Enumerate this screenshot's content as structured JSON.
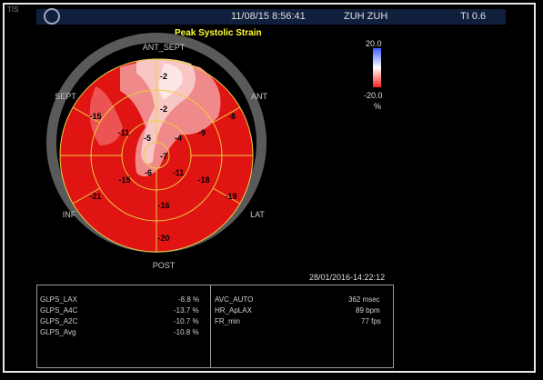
{
  "header": {
    "corner_text": "TIS",
    "date_time": "11/08/15 8:56:41",
    "patient": "ZUH ZUH",
    "ti": "TI 0.6"
  },
  "plot": {
    "title": "Peak Systolic Strain",
    "wall_labels": [
      "ANT_SEPT",
      "ANT",
      "LAT",
      "POST",
      "INF",
      "SEPT"
    ],
    "segments": {
      "basal": [
        "-2",
        "-8",
        "-19",
        "-20",
        "-21",
        "-15"
      ],
      "mid": [
        "-2",
        "-9",
        "-18",
        "-16",
        "-15",
        "-11"
      ],
      "apical": [
        "-4",
        "-11",
        "-6",
        "-5"
      ],
      "apex": "-7"
    }
  },
  "color_scale": {
    "max_label": "20.0",
    "min_label": "-20.0",
    "unit": "%",
    "colors": {
      "positive": "#4060ff",
      "zero": "#ffffff",
      "negative": "#ff2020"
    }
  },
  "timestamp": "28/01/2016-14:22:12",
  "measurements_left": [
    {
      "label": "GLPS_LAX",
      "value": "-8.8 %"
    },
    {
      "label": "GLPS_A4C",
      "value": "-13.7 %"
    },
    {
      "label": "GLPS_A2C",
      "value": "-10.7 %"
    },
    {
      "label": "GLPS_Avg",
      "value": "-10.8 %"
    }
  ],
  "measurements_right": [
    {
      "label": "AVC_AUTO",
      "value": "362 msec"
    },
    {
      "label": "HR_ApLAX",
      "value": "89 bpm"
    },
    {
      "label": "FR_min",
      "value": "77 fps"
    }
  ]
}
